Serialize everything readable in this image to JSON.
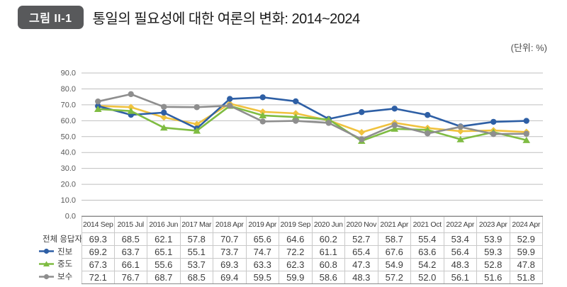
{
  "figure": {
    "badge_label": "그림 II-1",
    "title": "통일의 필요성에 대한 여론의 변화: 2014~2024",
    "unit_label": "(단위:  %)"
  },
  "colors": {
    "badge_bg": "#58595B",
    "grid": "#BFBFBF",
    "axis": "#9A9A9A",
    "table_border_light": "#C9C9C9",
    "table_border_dark": "#8C8C8C",
    "series": {
      "all_respondents": "#F0C23E",
      "progressive": "#2E5FA5",
      "moderate": "#7FBC42",
      "conservative": "#8E8E8E"
    }
  },
  "chart_data": {
    "type": "line",
    "categories": [
      "2014 Sep",
      "2015 Jul",
      "2016 Jun",
      "2017 Mar",
      "2018 Apr",
      "2019 Apr",
      "2019 Sep",
      "2020 Jun",
      "2020 Nov",
      "2021 Apr",
      "2021 Oct",
      "2022 Apr",
      "2023 Apr",
      "2024 Apr"
    ],
    "series": [
      {
        "key": "all_respondents",
        "name": "전체 응답자",
        "marker": "diamond",
        "values": [
          69.3,
          68.5,
          62.1,
          57.8,
          70.7,
          65.6,
          64.6,
          60.2,
          52.7,
          58.7,
          55.4,
          53.4,
          53.9,
          52.9
        ]
      },
      {
        "key": "progressive",
        "name": "진보",
        "marker": "circle",
        "values": [
          69.2,
          63.7,
          65.1,
          55.1,
          73.7,
          74.7,
          72.2,
          61.1,
          65.4,
          67.6,
          63.6,
          56.4,
          59.3,
          59.9
        ]
      },
      {
        "key": "moderate",
        "name": "중도",
        "marker": "triangle",
        "values": [
          67.3,
          66.1,
          55.6,
          53.7,
          69.3,
          63.3,
          62.3,
          60.8,
          47.3,
          54.9,
          54.2,
          48.3,
          52.8,
          47.8
        ]
      },
      {
        "key": "conservative",
        "name": "보수",
        "marker": "circle",
        "values": [
          72.1,
          76.7,
          68.7,
          68.5,
          69.4,
          59.5,
          59.9,
          58.6,
          48.3,
          57.2,
          52.0,
          56.1,
          51.6,
          51.8
        ]
      }
    ],
    "ylim": [
      0,
      90
    ],
    "ytick_step": 10,
    "ytick_format": "one_decimal",
    "grid": true,
    "legend_position": "left-of-data-table",
    "data_table_shown": true
  }
}
